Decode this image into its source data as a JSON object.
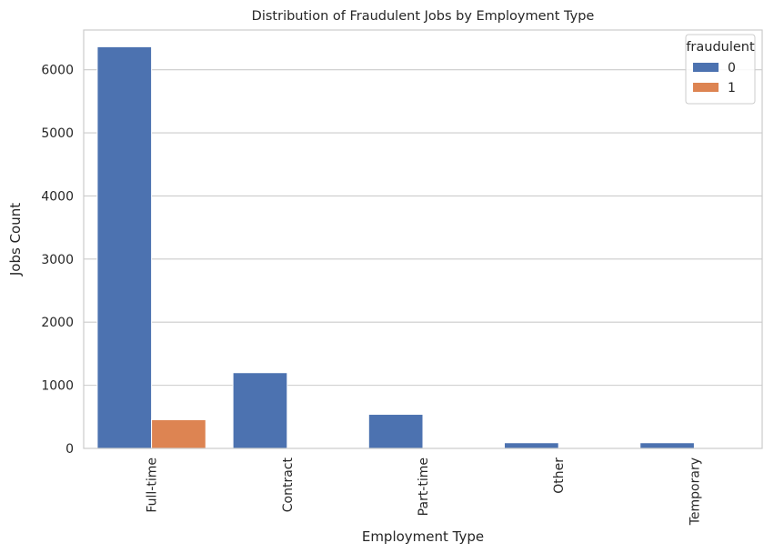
{
  "chart_data": {
    "type": "bar",
    "title": "Distribution of Fraudulent Jobs by Employment Type",
    "xlabel": "Employment Type",
    "ylabel": "Jobs Count",
    "categories": [
      "Full-time",
      "Contract",
      "Part-time",
      "Other",
      "Temporary"
    ],
    "series": [
      {
        "name": "0",
        "values": [
          6365,
          1200,
          540,
          90,
          90
        ],
        "color": "#4c72b0"
      },
      {
        "name": "1",
        "values": [
          455,
          8,
          8,
          3,
          2
        ],
        "color": "#dd8452"
      }
    ],
    "ylim": [
      0,
      6630
    ],
    "yticks": [
      0,
      1000,
      2000,
      3000,
      4000,
      5000,
      6000
    ],
    "ytick_labels": [
      "0",
      "1000",
      "2000",
      "3000",
      "4000",
      "5000",
      "6000"
    ],
    "grid": "horizontal",
    "legend": {
      "title": "fraudulent",
      "placement": "top-right"
    },
    "xtick_rotation": 90
  }
}
